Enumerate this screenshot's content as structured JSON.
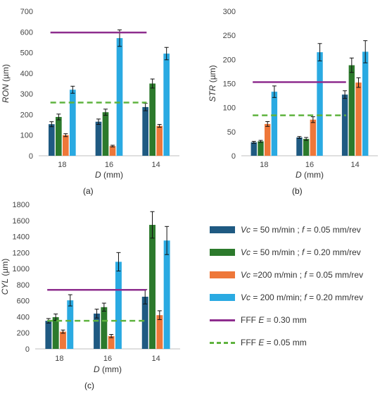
{
  "chart_data": [
    {
      "panel": "(a)",
      "type": "bar",
      "xlabel_var": "D",
      "xlabel_unit": " (mm)",
      "ylabel_var": "RON",
      "ylabel_unit": " (µm)",
      "categories": [
        "18",
        "16",
        "14"
      ],
      "ylim": [
        0,
        700
      ],
      "yticks": [
        0,
        100,
        200,
        300,
        400,
        500,
        600,
        700
      ],
      "series": [
        {
          "key": "s1",
          "values": [
            153,
            165,
            236
          ],
          "errors": [
            12,
            13,
            18
          ]
        },
        {
          "key": "s2",
          "values": [
            188,
            211,
            350
          ],
          "errors": [
            14,
            15,
            22
          ]
        },
        {
          "key": "s3",
          "values": [
            100,
            47,
            145
          ],
          "errors": [
            7,
            4,
            7
          ]
        },
        {
          "key": "s4",
          "values": [
            320,
            570,
            495
          ],
          "errors": [
            17,
            40,
            30
          ]
        }
      ],
      "reference_lines": [
        {
          "key": "l1",
          "value": 597,
          "span": [
            0.25,
            1.3
          ]
        },
        {
          "key": "l2",
          "value": 258,
          "span": [
            0.25,
            1.3
          ]
        }
      ]
    },
    {
      "panel": "(b)",
      "type": "bar",
      "xlabel_var": "D",
      "xlabel_unit": " (mm)",
      "ylabel_var": "STR",
      "ylabel_unit": " (µm)",
      "categories": [
        "18",
        "16",
        "14"
      ],
      "ylim": [
        0,
        300
      ],
      "yticks": [
        0,
        50,
        100,
        150,
        200,
        250,
        300
      ],
      "series": [
        {
          "key": "s1",
          "values": [
            28,
            38,
            127
          ],
          "errors": [
            2,
            2,
            8
          ]
        },
        {
          "key": "s2",
          "values": [
            30,
            35,
            188
          ],
          "errors": [
            2,
            3,
            15
          ]
        },
        {
          "key": "s3",
          "values": [
            66,
            75,
            152
          ],
          "errors": [
            5,
            6,
            10
          ]
        },
        {
          "key": "s4",
          "values": [
            133,
            215,
            216
          ],
          "errors": [
            12,
            18,
            23
          ]
        }
      ],
      "reference_lines": [
        {
          "key": "l1",
          "value": 153,
          "span": [
            0.25,
            1.3
          ]
        },
        {
          "key": "l2",
          "value": 84,
          "span": [
            0.25,
            1.3
          ]
        }
      ]
    },
    {
      "panel": "(c)",
      "type": "bar",
      "xlabel_var": "D",
      "xlabel_unit": " (mm)",
      "ylabel_var": "CYL",
      "ylabel_unit": " (µm)",
      "categories": [
        "18",
        "16",
        "14"
      ],
      "ylim": [
        0,
        1800
      ],
      "yticks": [
        0,
        200,
        400,
        600,
        800,
        1000,
        1200,
        1400,
        1600,
        1800
      ],
      "series": [
        {
          "key": "s1",
          "values": [
            350,
            440,
            650
          ],
          "errors": [
            28,
            55,
            90
          ]
        },
        {
          "key": "s2",
          "values": [
            395,
            520,
            1545
          ],
          "errors": [
            40,
            50,
            165
          ]
        },
        {
          "key": "s3",
          "values": [
            215,
            160,
            420
          ],
          "errors": [
            20,
            20,
            55
          ]
        },
        {
          "key": "s4",
          "values": [
            605,
            1085,
            1350
          ],
          "errors": [
            70,
            115,
            175
          ]
        }
      ],
      "reference_lines": [
        {
          "key": "l1",
          "value": 735,
          "span": [
            0.25,
            1.3
          ]
        },
        {
          "key": "l2",
          "value": 350,
          "span": [
            0.25,
            1.3
          ]
        }
      ]
    }
  ],
  "series_styles": {
    "s1": {
      "color": "#1f5a82"
    },
    "s2": {
      "color": "#2c7a2c"
    },
    "s3": {
      "color": "#ee7739"
    },
    "s4": {
      "color": "#2aaae2"
    },
    "l1": {
      "color": "#8e2d8e",
      "dash": false
    },
    "l2": {
      "color": "#5fb33f",
      "dash": true
    }
  },
  "legend": [
    {
      "key": "s1",
      "kind": "bar",
      "parts": [
        [
          "Vc",
          true
        ],
        [
          " = 50 m/min ; ",
          false
        ],
        [
          "f",
          true
        ],
        [
          " = 0.05 mm/rev",
          false
        ]
      ]
    },
    {
      "key": "s2",
      "kind": "bar",
      "parts": [
        [
          "Vc",
          true
        ],
        [
          " = 50 m/min ; ",
          false
        ],
        [
          "f",
          true
        ],
        [
          " = 0.20 mm/rev",
          false
        ]
      ]
    },
    {
      "key": "s3",
      "kind": "bar",
      "parts": [
        [
          "Vc",
          true
        ],
        [
          " =200 m/min ; ",
          false
        ],
        [
          "f",
          true
        ],
        [
          " = 0.05 mm/rev",
          false
        ]
      ]
    },
    {
      "key": "s4",
      "kind": "bar",
      "parts": [
        [
          "Vc",
          true
        ],
        [
          " = 200 m/min; ",
          false
        ],
        [
          "f",
          true
        ],
        [
          " = 0.20 mm/rev",
          false
        ]
      ]
    },
    {
      "key": "l1",
      "kind": "line",
      "parts": [
        [
          "FFF ",
          false
        ],
        [
          "E",
          true
        ],
        [
          " = 0.30 mm",
          false
        ]
      ]
    },
    {
      "key": "l2",
      "kind": "line",
      "parts": [
        [
          "FFF ",
          false
        ],
        [
          "E",
          true
        ],
        [
          " = 0.05 mm",
          false
        ]
      ]
    }
  ],
  "panel_labels": [
    "(a)",
    "(b)",
    "(c)"
  ]
}
